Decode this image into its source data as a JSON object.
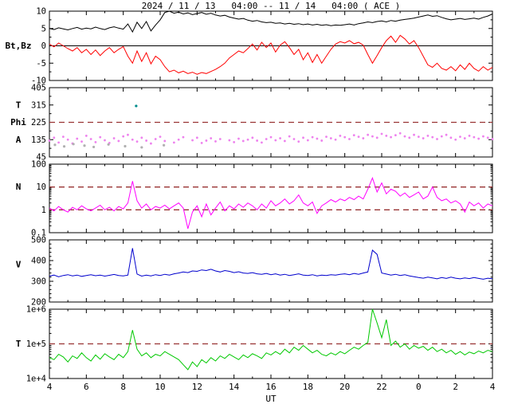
{
  "title": "2024 / 11 / 13   04:00 -- 11 / 14   04:00 ( ACE )",
  "xlabel": "UT",
  "colors": {
    "axis": "#000000",
    "ref": "#993333",
    "background": "#ffffff"
  },
  "chart_data": {
    "type": "line",
    "x_start": 4,
    "x_step": 0.25,
    "x_end": 28,
    "x_ticks": [
      4,
      6,
      8,
      10,
      12,
      14,
      16,
      18,
      20,
      22,
      24,
      26,
      28
    ],
    "x_tick_labels": [
      "4",
      "6",
      "8",
      "10",
      "12",
      "14",
      "16",
      "18",
      "20",
      "22",
      "0",
      "2",
      "4"
    ],
    "panels": [
      {
        "name": "magnetic-field",
        "log": false,
        "ylim": [
          -10,
          10
        ],
        "yticks": [
          [
            10,
            "10"
          ],
          [
            5,
            "5"
          ],
          [
            0,
            "0"
          ],
          [
            -5,
            "-5"
          ],
          [
            -10,
            "-10"
          ]
        ],
        "yminor": 2.5,
        "zero_line": true,
        "side_labels": [
          {
            "text": "Bt,Bz",
            "at": 0
          }
        ],
        "ref_lines": [],
        "series": [
          {
            "name": "Bt",
            "color": "#000000",
            "values": [
              5.0,
              4.7,
              5.2,
              4.9,
              4.6,
              5.0,
              5.3,
              4.8,
              5.1,
              4.9,
              5.4,
              5.0,
              4.7,
              5.2,
              5.5,
              5.1,
              4.8,
              6.3,
              4.0,
              6.8,
              5.0,
              7.0,
              4.3,
              6.0,
              7.5,
              9.6,
              10.0,
              9.4,
              9.7,
              9.2,
              9.5,
              9.0,
              9.3,
              9.6,
              9.1,
              9.4,
              8.9,
              8.6,
              8.8,
              8.3,
              8.0,
              7.7,
              7.9,
              7.4,
              7.1,
              7.3,
              6.9,
              6.7,
              6.8,
              6.5,
              6.6,
              6.3,
              6.5,
              6.2,
              6.4,
              6.1,
              6.3,
              6.0,
              6.2,
              5.9,
              6.1,
              5.8,
              6.0,
              5.9,
              6.1,
              6.3,
              6.0,
              6.4,
              6.6,
              6.9,
              6.7,
              7.0,
              7.2,
              6.9,
              7.3,
              7.1,
              7.4,
              7.6,
              7.8,
              8.0,
              8.3,
              8.6,
              8.9,
              8.5,
              8.7,
              8.2,
              7.8,
              7.5,
              7.7,
              7.9,
              7.6,
              7.8,
              8.0,
              7.7,
              8.2,
              8.6,
              9.2
            ]
          },
          {
            "name": "Bz",
            "color": "#ff0000",
            "values": [
              0.5,
              -0.3,
              0.8,
              0.0,
              -0.8,
              -1.5,
              -0.5,
              -2.0,
              -1.0,
              -2.5,
              -1.2,
              -2.8,
              -1.5,
              -0.5,
              -2.0,
              -1.0,
              -0.2,
              -3.0,
              -5.0,
              -1.5,
              -4.5,
              -2.0,
              -5.2,
              -3.0,
              -4.0,
              -6.0,
              -7.5,
              -7.0,
              -7.8,
              -7.3,
              -8.0,
              -7.6,
              -8.2,
              -7.7,
              -8.0,
              -7.4,
              -6.8,
              -6.0,
              -5.0,
              -3.5,
              -2.5,
              -1.5,
              -2.0,
              -0.8,
              0.5,
              -1.2,
              1.0,
              -0.5,
              0.8,
              -1.8,
              0.2,
              1.2,
              -0.5,
              -2.5,
              -1.0,
              -4.0,
              -2.0,
              -4.8,
              -2.5,
              -5.0,
              -3.0,
              -1.0,
              0.5,
              1.2,
              0.8,
              1.5,
              0.6,
              1.0,
              0.2,
              -2.5,
              -5.0,
              -2.8,
              -0.5,
              1.5,
              2.8,
              1.0,
              3.0,
              2.0,
              0.5,
              1.5,
              -0.5,
              -3.0,
              -5.5,
              -6.2,
              -5.0,
              -6.5,
              -7.0,
              -6.0,
              -7.2,
              -5.5,
              -6.8,
              -5.0,
              -6.5,
              -7.3,
              -6.0,
              -7.0,
              -6.2
            ]
          }
        ]
      },
      {
        "name": "phi-angle",
        "log": false,
        "ylim": [
          45,
          405
        ],
        "yticks": [
          [
            405,
            "405"
          ],
          [
            315,
            "315"
          ],
          [
            225,
            "225"
          ],
          [
            135,
            "135"
          ],
          [
            45,
            "45"
          ]
        ],
        "yminor": 45,
        "zero_line": false,
        "side_labels": [
          {
            "text": "T",
            "at": 315
          },
          {
            "text": "Phi",
            "at": 225
          },
          {
            "text": "A",
            "at": 135
          }
        ],
        "ref_lines": [
          225
        ],
        "series": [
          {
            "name": "Phi",
            "type": "scatter",
            "color": "#ee82ee",
            "values": [
              130,
              145,
              120,
              150,
              135,
              115,
              140,
              125,
              155,
              138,
              122,
              148,
              132,
              118,
              142,
              128,
              152,
              160,
              135,
              125,
              145,
              130,
              115,
              138,
              150,
              128,
              null,
              120,
              135,
              148,
              null,
              132,
              145,
              118,
              130,
              142,
              126,
              138,
              null,
              132,
              122,
              140,
              128,
              135,
              145,
              130,
              120,
              138,
              148,
              132,
              142,
              128,
              152,
              138,
              125,
              145,
              132,
              148,
              140,
              130,
              150,
              142,
              135,
              155,
              148,
              138,
              158,
              150,
              142,
              160,
              152,
              145,
              165,
              155,
              148,
              158,
              168,
              152,
              145,
              160,
              150,
              142,
              155,
              148,
              138,
              152,
              160,
              145,
              135,
              150,
              142,
              155,
              148,
              140,
              152,
              145,
              138
            ]
          },
          {
            "name": "Phi-secondary",
            "type": "scatter",
            "color": "#b0b0b0",
            "points": [
              [
                4.3,
                108
              ],
              [
                4.8,
                100
              ],
              [
                5.3,
                112
              ],
              [
                5.9,
                104
              ],
              [
                6.4,
                97
              ],
              [
                7.2,
                110
              ],
              [
                8.1,
                101
              ],
              [
                9.0,
                95
              ],
              [
                10.2,
                106
              ]
            ]
          },
          {
            "name": "Phi-outlier",
            "type": "scatter",
            "color": "#008b8b",
            "points": [
              [
                8.7,
                310
              ]
            ]
          }
        ]
      },
      {
        "name": "density",
        "log": true,
        "ylim": [
          0.1,
          100
        ],
        "yticks": [
          [
            100,
            "100"
          ],
          [
            10,
            "10"
          ],
          [
            1,
            "1"
          ],
          [
            0.1,
            "0.1"
          ]
        ],
        "zero_line": false,
        "side_labels": [
          {
            "text": "N",
            "at": 10
          }
        ],
        "ref_lines": [
          10,
          1
        ],
        "series": [
          {
            "name": "N",
            "color": "#ff00ff",
            "values": [
              1.2,
              0.9,
              1.4,
              1.0,
              0.8,
              1.3,
              1.0,
              1.5,
              1.1,
              0.9,
              1.2,
              1.6,
              1.0,
              1.3,
              0.9,
              1.4,
              1.1,
              2.0,
              18,
              2.5,
              1.2,
              1.8,
              1.0,
              1.4,
              1.2,
              1.6,
              1.1,
              1.5,
              2.0,
              1.2,
              0.15,
              0.8,
              1.5,
              0.5,
              1.8,
              0.6,
              1.2,
              2.2,
              0.9,
              1.5,
              1.1,
              1.8,
              1.3,
              2.0,
              1.5,
              1.0,
              1.8,
              1.2,
              2.5,
              1.5,
              2.0,
              3.0,
              1.8,
              2.5,
              4.5,
              2.0,
              1.5,
              2.2,
              0.7,
              1.5,
              2.0,
              2.8,
              2.2,
              3.0,
              2.5,
              3.5,
              2.8,
              4.0,
              3.0,
              8.0,
              25,
              6.0,
              15,
              5.0,
              8.0,
              6.5,
              4.0,
              5.5,
              3.5,
              4.5,
              6.0,
              3.0,
              4.0,
              10,
              3.5,
              2.5,
              3.0,
              2.0,
              2.5,
              1.8,
              0.8,
              2.2,
              1.5,
              2.0,
              1.2,
              1.8,
              1.5
            ]
          }
        ]
      },
      {
        "name": "speed",
        "log": false,
        "ylim": [
          200,
          500
        ],
        "yticks": [
          [
            500,
            "500"
          ],
          [
            400,
            "400"
          ],
          [
            300,
            "300"
          ],
          [
            200,
            "200"
          ]
        ],
        "yminor": 20,
        "zero_line": false,
        "side_labels": [
          {
            "text": "V",
            "at": 380
          }
        ],
        "ref_lines": [],
        "series": [
          {
            "name": "V",
            "color": "#0000cd",
            "values": [
              325,
              330,
              322,
              328,
              332,
              326,
              330,
              324,
              328,
              332,
              327,
              330,
              325,
              329,
              333,
              328,
              326,
              330,
              460,
              335,
              325,
              330,
              326,
              332,
              328,
              334,
              330,
              336,
              340,
              345,
              342,
              350,
              348,
              355,
              352,
              358,
              350,
              345,
              352,
              348,
              342,
              346,
              340,
              338,
              342,
              336,
              334,
              338,
              332,
              336,
              330,
              334,
              328,
              332,
              336,
              330,
              328,
              332,
              326,
              330,
              328,
              332,
              330,
              334,
              336,
              332,
              338,
              334,
              340,
              345,
              450,
              430,
              340,
              335,
              330,
              334,
              328,
              332,
              326,
              322,
              318,
              315,
              320,
              316,
              312,
              318,
              314,
              320,
              315,
              312,
              316,
              313,
              318,
              314,
              310,
              315,
              312
            ]
          }
        ]
      },
      {
        "name": "temperature",
        "log": true,
        "ylim": [
          10000,
          1000000
        ],
        "yticks": [
          [
            1000000,
            "1e+6"
          ],
          [
            100000,
            "1e+5"
          ],
          [
            10000,
            "1e+4"
          ]
        ],
        "zero_line": false,
        "side_labels": [
          {
            "text": "T",
            "at": 100000
          }
        ],
        "ref_lines": [
          100000
        ],
        "series": [
          {
            "name": "T",
            "color": "#00c800",
            "values": [
              40000,
              35000,
              50000,
              42000,
              30000,
              45000,
              38000,
              55000,
              40000,
              32000,
              48000,
              36000,
              52000,
              42000,
              35000,
              50000,
              40000,
              60000,
              250000,
              70000,
              45000,
              55000,
              40000,
              50000,
              45000,
              60000,
              50000,
              42000,
              35000,
              25000,
              18000,
              30000,
              22000,
              35000,
              28000,
              40000,
              32000,
              45000,
              38000,
              50000,
              42000,
              35000,
              48000,
              40000,
              52000,
              45000,
              38000,
              55000,
              48000,
              60000,
              50000,
              70000,
              55000,
              80000,
              65000,
              90000,
              70000,
              55000,
              65000,
              50000,
              45000,
              55000,
              48000,
              60000,
              52000,
              65000,
              80000,
              70000,
              90000,
              110000,
              1000000,
              400000,
              150000,
              500000,
              90000,
              120000,
              80000,
              100000,
              70000,
              90000,
              75000,
              85000,
              65000,
              80000,
              60000,
              70000,
              55000,
              65000,
              50000,
              60000,
              48000,
              58000,
              52000,
              62000,
              55000,
              65000,
              60000
            ]
          }
        ]
      }
    ]
  }
}
